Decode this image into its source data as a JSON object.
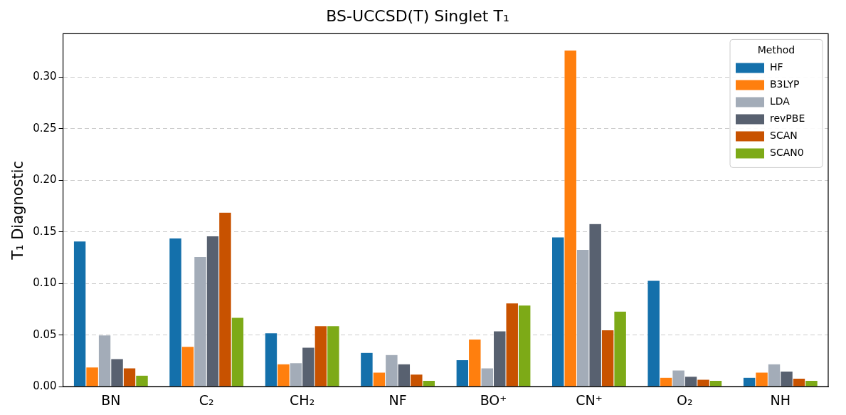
{
  "chart_data": {
    "type": "bar",
    "title": "BS-UCCSD(T) Singlet T₁",
    "ylabel": "T₁ Diagnostic",
    "legend_title": "Method",
    "legend": "top right",
    "grid": "y",
    "categories": [
      "BN",
      "C₂",
      "CH₂",
      "NF",
      "BO⁺",
      "CN⁺",
      "O₂",
      "NH"
    ],
    "series": [
      {
        "name": "HF",
        "color": "#1470ab",
        "values": [
          0.141,
          0.144,
          0.052,
          0.033,
          0.026,
          0.145,
          0.103,
          0.009
        ]
      },
      {
        "name": "B3LYP",
        "color": "#ff7f0e",
        "values": [
          0.019,
          0.039,
          0.022,
          0.014,
          0.046,
          0.326,
          0.009,
          0.014
        ]
      },
      {
        "name": "LDA",
        "color": "#a3acb8",
        "values": [
          0.05,
          0.126,
          0.023,
          0.031,
          0.018,
          0.133,
          0.016,
          0.022
        ]
      },
      {
        "name": "revPBE",
        "color": "#586170",
        "values": [
          0.027,
          0.146,
          0.038,
          0.022,
          0.054,
          0.158,
          0.01,
          0.015
        ]
      },
      {
        "name": "SCAN",
        "color": "#c85200",
        "values": [
          0.018,
          0.169,
          0.059,
          0.012,
          0.081,
          0.055,
          0.007,
          0.008
        ]
      },
      {
        "name": "SCAN0",
        "color": "#7daa17",
        "values": [
          0.011,
          0.067,
          0.059,
          0.006,
          0.079,
          0.073,
          0.006,
          0.006
        ]
      }
    ],
    "ylim": [
      0,
      0.342
    ],
    "yticks": [
      {
        "value": 0,
        "label": "0.00"
      },
      {
        "value": 0.05,
        "label": "0.05"
      },
      {
        "value": 0.1,
        "label": "0.10"
      },
      {
        "value": 0.15,
        "label": "0.15"
      },
      {
        "value": 0.2,
        "label": "0.20"
      },
      {
        "value": 0.25,
        "label": "0.25"
      },
      {
        "value": 0.3,
        "label": "0.30"
      }
    ]
  }
}
